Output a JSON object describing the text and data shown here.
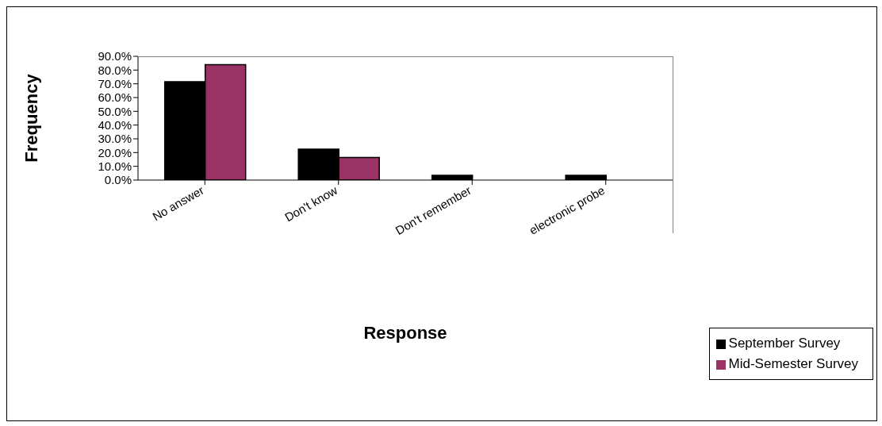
{
  "chart_data": {
    "type": "bar",
    "categories": [
      "No answer",
      "Don't know",
      "Don't remember",
      "electronic probe"
    ],
    "series": [
      {
        "name": "September Survey",
        "color": "#000000",
        "values": [
          71.5,
          22.5,
          3.5,
          3.5
        ]
      },
      {
        "name": "Mid-Semester Survey",
        "color": "#993366",
        "values": [
          84,
          16.5,
          0,
          0
        ]
      }
    ],
    "xlabel": "Response",
    "ylabel": "Frequency",
    "ylim": [
      0,
      90
    ],
    "yticks": [
      {
        "value": 0,
        "label": "0.0%"
      },
      {
        "value": 10,
        "label": "10.0%"
      },
      {
        "value": 20,
        "label": "20.0%"
      },
      {
        "value": 30,
        "label": "30.0%"
      },
      {
        "value": 40,
        "label": "40.0%"
      },
      {
        "value": 50,
        "label": "50.0%"
      },
      {
        "value": 60,
        "label": "60.0%"
      },
      {
        "value": 70,
        "label": "70.0%"
      },
      {
        "value": 80,
        "label": "80.0%"
      },
      {
        "value": 90,
        "label": "90.0%"
      }
    ],
    "legend": "bottom right"
  }
}
